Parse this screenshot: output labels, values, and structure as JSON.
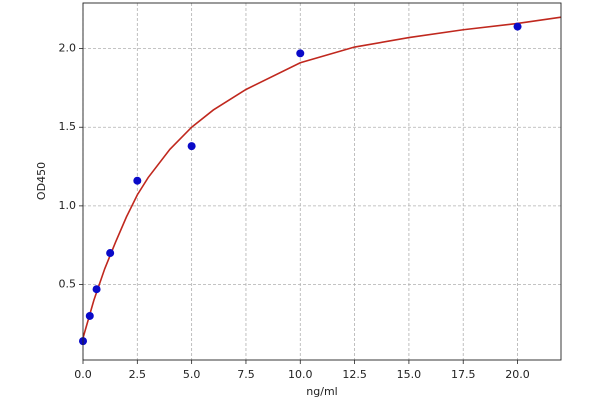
{
  "chart_data": {
    "type": "scatter",
    "x_label": "ng/ml",
    "y_label": "OD450",
    "xlim": [
      0,
      22
    ],
    "ylim": [
      0.02,
      2.29
    ],
    "xticks": [
      {
        "value": 0,
        "label": "0.0"
      },
      2.5,
      {
        "value": 5,
        "label": "5.0"
      },
      7.5,
      {
        "value": 10,
        "label": "10.0"
      },
      12.5,
      {
        "value": 15,
        "label": "15.0"
      },
      17.5,
      {
        "value": 20,
        "label": "20.0"
      }
    ],
    "yticks": [
      0.5,
      {
        "value": 1,
        "label": "1.0"
      },
      1.5,
      {
        "value": 2,
        "label": "2.0"
      }
    ],
    "grid": true,
    "series": [
      {
        "style": "line",
        "color": "#c0281e",
        "x": [
          0,
          0.5,
          1,
          1.5,
          2,
          2.5,
          3,
          4,
          5,
          6,
          7.5,
          10,
          12.5,
          15,
          17.5,
          20,
          22
        ],
        "values": [
          0.16,
          0.4,
          0.6,
          0.77,
          0.93,
          1.07,
          1.18,
          1.36,
          1.5,
          1.61,
          1.74,
          1.91,
          2.01,
          2.07,
          2.12,
          2.16,
          2.2
        ]
      },
      {
        "style": "points",
        "color": "#0a0ac8",
        "x": [
          0,
          0.3125,
          0.625,
          1.25,
          2.5,
          5,
          10,
          20
        ],
        "values": [
          0.14,
          0.3,
          0.47,
          0.7,
          1.16,
          1.38,
          1.97,
          2.14
        ]
      }
    ]
  }
}
